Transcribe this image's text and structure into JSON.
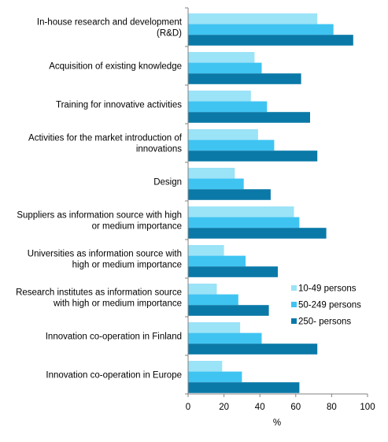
{
  "chart_data": {
    "type": "bar",
    "orientation": "horizontal",
    "categories": [
      [
        "In-house research and development",
        "(R&D)"
      ],
      [
        "Acquisition of existing knowledge"
      ],
      [
        "Training for innovative activities"
      ],
      [
        "Activities for the market introduction of",
        "innovations"
      ],
      [
        "Design"
      ],
      [
        "Suppliers as information source with high",
        "or medium importance"
      ],
      [
        "Universities as information source with",
        "high or medium importance"
      ],
      [
        "Research institutes as information source",
        "with high or medium importance"
      ],
      [
        "Innovation co-operation in Finland"
      ],
      [
        "Innovation co-operation in Europe"
      ]
    ],
    "series": [
      {
        "name": "10-49 persons",
        "color": "#9be3f7",
        "values": [
          72,
          37,
          35,
          39,
          26,
          59,
          20,
          16,
          29,
          19
        ]
      },
      {
        "name": "50-249 persons",
        "color": "#3fc4f2",
        "values": [
          81,
          41,
          44,
          48,
          31,
          62,
          32,
          28,
          41,
          30
        ]
      },
      {
        "name": "250- persons",
        "color": "#0a79a8",
        "values": [
          92,
          63,
          68,
          72,
          46,
          77,
          50,
          45,
          72,
          62
        ]
      }
    ],
    "xlim": [
      0,
      100
    ],
    "xticks": [
      "0",
      "20",
      "40",
      "60",
      "80",
      "100"
    ],
    "xlabel": "%",
    "legend_position": "right, lower-middle",
    "grid": false
  }
}
